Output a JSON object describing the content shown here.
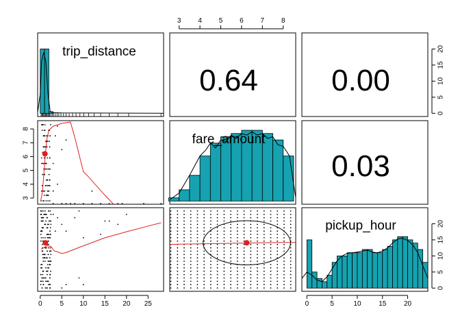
{
  "chart_data": {
    "type": "scatter-matrix",
    "variables": [
      "trip_distance",
      "fare_amount",
      "pickup_hour"
    ],
    "correlations": {
      "trip_distance__fare_amount": "0.64",
      "trip_distance__pickup_hour": "0.00",
      "fare_amount__pickup_hour": "0.03"
    },
    "axes": {
      "trip_distance": {
        "range": [
          -0.6,
          28.6
        ],
        "ticks": [
          0,
          5,
          10,
          15,
          20,
          25
        ]
      },
      "fare_amount": {
        "range": [
          2.55,
          8.6
        ],
        "ticks": [
          3,
          4,
          5,
          6,
          7,
          8
        ]
      },
      "pickup_hour": {
        "range": [
          -1,
          24
        ],
        "ticks": [
          0,
          5,
          10,
          15,
          20
        ]
      },
      "histogram_count": {
        "range": [
          -1,
          25
        ],
        "ticks": [
          0,
          5,
          10,
          15,
          20
        ]
      }
    },
    "histograms": {
      "trip_distance": {
        "bins": [
          [
            0,
            1,
            20
          ],
          [
            1,
            2,
            20
          ],
          [
            2,
            3,
            0.5
          ]
        ],
        "density": [
          [
            -0.6,
            0.3
          ],
          [
            0,
            6
          ],
          [
            0.3,
            16
          ],
          [
            0.8,
            19
          ],
          [
            1.3,
            16
          ],
          [
            1.8,
            6
          ],
          [
            2.3,
            0.6
          ],
          [
            3,
            0.2
          ],
          [
            5,
            0.1
          ],
          [
            28.6,
            0
          ]
        ],
        "rug": [
          0.2,
          0.4,
          0.6,
          0.8,
          1.0,
          1.2,
          1.4,
          1.6,
          1.8,
          2.0,
          2.2,
          2.5,
          2.8,
          3.1,
          3.5,
          3.9,
          4.3,
          4.8,
          5.4,
          6.0,
          6.7,
          7.5,
          8.3,
          9.2,
          10.1,
          11.2,
          12.5,
          14.0,
          16.0,
          18.0,
          20.5,
          28.0
        ]
      },
      "fare_amount": {
        "bins": [
          [
            2.5,
            3,
            1
          ],
          [
            3,
            3.5,
            3.5
          ],
          [
            3.5,
            4,
            8
          ],
          [
            4,
            4.5,
            14
          ],
          [
            4.5,
            5,
            18
          ],
          [
            5,
            5.5,
            20
          ],
          [
            5.5,
            6,
            21
          ],
          [
            6,
            6.5,
            22
          ],
          [
            6.5,
            7,
            22
          ],
          [
            7,
            7.5,
            21
          ],
          [
            7.5,
            8,
            19
          ],
          [
            8,
            8.5,
            14
          ]
        ],
        "density": [
          [
            2.55,
            0.4
          ],
          [
            3,
            2.5
          ],
          [
            3.5,
            8
          ],
          [
            4,
            14
          ],
          [
            4.3,
            16
          ],
          [
            4.5,
            18
          ],
          [
            4.75,
            16.5
          ],
          [
            5,
            19
          ],
          [
            5.25,
            18.5
          ],
          [
            5.5,
            20.5
          ],
          [
            5.75,
            19.5
          ],
          [
            6,
            21
          ],
          [
            6.25,
            20.5
          ],
          [
            6.5,
            21.5
          ],
          [
            6.75,
            20.5
          ],
          [
            7,
            21
          ],
          [
            7.25,
            19.5
          ],
          [
            7.5,
            20
          ],
          [
            7.75,
            17.5
          ],
          [
            8,
            17
          ],
          [
            8.3,
            14
          ],
          [
            8.6,
            1
          ]
        ]
      },
      "pickup_hour": {
        "bins": [
          [
            0,
            1,
            15
          ],
          [
            1,
            2,
            5
          ],
          [
            2,
            3,
            3
          ],
          [
            3,
            4,
            2
          ],
          [
            4,
            5,
            4
          ],
          [
            5,
            6,
            8
          ],
          [
            6,
            7,
            10
          ],
          [
            7,
            8,
            10
          ],
          [
            8,
            9,
            11
          ],
          [
            9,
            10,
            11
          ],
          [
            10,
            11,
            11
          ],
          [
            11,
            12,
            12
          ],
          [
            12,
            13,
            12
          ],
          [
            13,
            14,
            11
          ],
          [
            14,
            15,
            11
          ],
          [
            15,
            16,
            12
          ],
          [
            16,
            17,
            13
          ],
          [
            17,
            18,
            15
          ],
          [
            18,
            19,
            16
          ],
          [
            19,
            20,
            16
          ],
          [
            20,
            21,
            15
          ],
          [
            21,
            22,
            14
          ],
          [
            22,
            23,
            12
          ],
          [
            23,
            24,
            8
          ]
        ],
        "density": [
          [
            -1,
            3
          ],
          [
            0,
            5
          ],
          [
            1,
            4
          ],
          [
            2,
            2.5
          ],
          [
            3,
            2
          ],
          [
            4,
            3.5
          ],
          [
            5,
            6
          ],
          [
            6,
            8.5
          ],
          [
            7,
            10
          ],
          [
            8,
            10.8
          ],
          [
            9,
            11
          ],
          [
            10,
            11.2
          ],
          [
            11,
            11.5
          ],
          [
            12,
            11.8
          ],
          [
            13,
            11.2
          ],
          [
            14,
            11
          ],
          [
            15,
            11.5
          ],
          [
            16,
            12.5
          ],
          [
            17,
            14
          ],
          [
            18,
            15.3
          ],
          [
            19,
            15.5
          ],
          [
            20,
            14.8
          ],
          [
            21,
            13.5
          ],
          [
            22,
            11
          ],
          [
            23,
            7
          ],
          [
            24,
            3
          ]
        ]
      }
    },
    "scatter": {
      "fare_vs_distance": {
        "lowess": [
          [
            0.1,
            2.8
          ],
          [
            0.5,
            3.4
          ],
          [
            1.0,
            5.4
          ],
          [
            1.5,
            7.2
          ],
          [
            2,
            7.9
          ],
          [
            3,
            8.2
          ],
          [
            5,
            8.4
          ],
          [
            7,
            8.5
          ],
          [
            8,
            7.4
          ],
          [
            10,
            4.9
          ],
          [
            11,
            4.6
          ],
          [
            13,
            3.9
          ],
          [
            15,
            3.2
          ],
          [
            17,
            2.55
          ]
        ],
        "ellipse_center": [
          1.1,
          6.2
        ]
      },
      "hour_vs_distance": {
        "lowess": [
          [
            0.2,
            11.6
          ],
          [
            0.8,
            12.0
          ],
          [
            1.5,
            12.6
          ],
          [
            2.5,
            12.4
          ],
          [
            3.2,
            11.1
          ],
          [
            4,
            10.8
          ],
          [
            5,
            10.3
          ],
          [
            6,
            10.6
          ],
          [
            8,
            11.6
          ],
          [
            10,
            12.6
          ],
          [
            15,
            15.0
          ],
          [
            20,
            16.8
          ],
          [
            25,
            18.5
          ],
          [
            28,
            19.5
          ]
        ],
        "ellipse_center": [
          1.2,
          13.5
        ]
      },
      "hour_vs_fare": {
        "lowess": [
          [
            2.55,
            13.0
          ],
          [
            3,
            13.1
          ],
          [
            4,
            13.2
          ],
          [
            5,
            13.3
          ],
          [
            6,
            13.4
          ],
          [
            7,
            13.5
          ],
          [
            8,
            13.6
          ],
          [
            8.6,
            13.6
          ]
        ],
        "ellipse_center": [
          6.25,
          13.5
        ],
        "ellipse_radius": [
          2.1,
          6.6
        ]
      }
    }
  }
}
